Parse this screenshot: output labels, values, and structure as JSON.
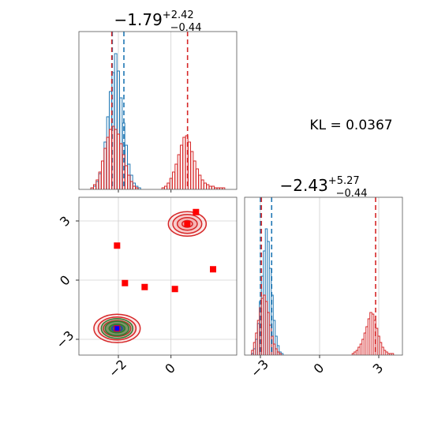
{
  "chart_data": [
    {
      "type": "histogram",
      "panel": "top-left",
      "title": {
        "value": "−1.79",
        "plus": "+2.42",
        "minus": "−0.44"
      },
      "x_range": [
        -3.5,
        2.5
      ],
      "grid": true,
      "series": [
        {
          "name": "",
          "color": "#1f77b4",
          "bin_width": 0.09,
          "x": [
            -3.0,
            -2.9,
            -2.8,
            -2.7,
            -2.6,
            -2.5,
            -2.4,
            -2.3,
            -2.2,
            -2.1,
            -2.0,
            -1.9,
            -1.8,
            -1.7,
            -1.6,
            -1.5,
            -1.4,
            -1.3,
            -1.2
          ],
          "y": [
            0.01,
            0.02,
            0.05,
            0.1,
            0.18,
            0.3,
            0.46,
            0.62,
            0.74,
            0.86,
            0.75,
            0.58,
            0.42,
            0.28,
            0.16,
            0.09,
            0.04,
            0.02,
            0.01
          ]
        },
        {
          "name": "",
          "color": "#d62728",
          "bin_width": 0.09,
          "x": [
            -3.0,
            -2.9,
            -2.8,
            -2.7,
            -2.6,
            -2.5,
            -2.4,
            -2.3,
            -2.2,
            -2.1,
            -2.0,
            -1.9,
            -1.8,
            -1.7,
            -1.6,
            -1.5,
            -1.4,
            -1.3,
            -0.3,
            -0.2,
            -0.1,
            0.0,
            0.1,
            0.2,
            0.3,
            0.4,
            0.5,
            0.6,
            0.7,
            0.8,
            0.9,
            1.0,
            1.1,
            1.2,
            1.3,
            1.4,
            1.5,
            1.6,
            1.7,
            1.8,
            1.9,
            2.0
          ],
          "y": [
            0.01,
            0.03,
            0.06,
            0.11,
            0.18,
            0.26,
            0.33,
            0.38,
            0.4,
            0.38,
            0.35,
            0.29,
            0.22,
            0.15,
            0.09,
            0.05,
            0.02,
            0.01,
            0.01,
            0.02,
            0.04,
            0.07,
            0.11,
            0.16,
            0.22,
            0.28,
            0.33,
            0.34,
            0.3,
            0.24,
            0.18,
            0.13,
            0.09,
            0.06,
            0.04,
            0.03,
            0.02,
            0.02,
            0.01,
            0.01,
            0.01,
            0.01
          ]
        }
      ],
      "vlines": [
        {
          "x": -2.23,
          "color": "#1f77b4"
        },
        {
          "x": -1.79,
          "color": "#1f77b4"
        },
        {
          "x": -2.25,
          "color": "#d62728"
        },
        {
          "x": 0.63,
          "color": "#d62728"
        }
      ]
    },
    {
      "type": "histogram",
      "panel": "bottom-right",
      "title": {
        "value": "−2.43",
        "plus": "+5.27",
        "minus": "−0.44"
      },
      "x_range": [
        -3.8,
        4.2
      ],
      "xticks": [
        -3,
        0,
        3
      ],
      "xtick_labels": [
        "−3",
        "0",
        "3"
      ],
      "grid": true,
      "series": [
        {
          "name": "",
          "color": "#1f77b4",
          "bin_width": 0.1,
          "x": [
            -3.4,
            -3.3,
            -3.2,
            -3.1,
            -3.0,
            -2.9,
            -2.8,
            -2.7,
            -2.6,
            -2.5,
            -2.4,
            -2.3,
            -2.2,
            -2.1,
            -2.0,
            -1.9
          ],
          "y": [
            0.01,
            0.04,
            0.1,
            0.2,
            0.34,
            0.5,
            0.66,
            0.8,
            0.72,
            0.55,
            0.38,
            0.22,
            0.12,
            0.06,
            0.02,
            0.01
          ]
        },
        {
          "name": "",
          "color": "#d62728",
          "bin_width": 0.1,
          "x": [
            -3.4,
            -3.3,
            -3.2,
            -3.1,
            -3.0,
            -2.9,
            -2.8,
            -2.7,
            -2.6,
            -2.5,
            -2.4,
            -2.3,
            -2.2,
            -2.1,
            -2.0,
            1.7,
            1.8,
            1.9,
            2.0,
            2.1,
            2.2,
            2.3,
            2.4,
            2.5,
            2.6,
            2.7,
            2.8,
            2.9,
            3.0,
            3.1,
            3.2,
            3.3,
            3.4,
            3.5,
            3.6,
            3.7
          ],
          "y": [
            0.03,
            0.08,
            0.14,
            0.22,
            0.3,
            0.36,
            0.38,
            0.34,
            0.27,
            0.19,
            0.12,
            0.07,
            0.04,
            0.02,
            0.01,
            0.01,
            0.02,
            0.03,
            0.05,
            0.07,
            0.1,
            0.14,
            0.18,
            0.23,
            0.27,
            0.26,
            0.22,
            0.17,
            0.12,
            0.08,
            0.05,
            0.03,
            0.02,
            0.01,
            0.01,
            0.01
          ]
        }
      ],
      "vlines": [
        {
          "x": -3.0,
          "color": "#1f77b4"
        },
        {
          "x": -2.43,
          "color": "#1f77b4"
        },
        {
          "x": -2.95,
          "color": "#d62728"
        },
        {
          "x": 2.84,
          "color": "#d62728"
        }
      ]
    },
    {
      "type": "contour-scatter",
      "panel": "bottom-left",
      "x_range": [
        -3.5,
        2.5
      ],
      "y_range": [
        -3.8,
        4.2
      ],
      "xticks": [
        -2,
        0
      ],
      "xtick_labels": [
        "−2",
        "0"
      ],
      "yticks": [
        -3,
        0,
        3
      ],
      "ytick_labels": [
        "−3",
        "0",
        "3"
      ],
      "grid": true,
      "contours": [
        {
          "color": "#d62728",
          "fill": "#f4a6a6",
          "cx": 0.62,
          "cy": 2.85,
          "rx": [
            0.72,
            0.55,
            0.38,
            0.2
          ],
          "ry": [
            0.62,
            0.48,
            0.32,
            0.17
          ]
        },
        {
          "color": "#d62728",
          "fill": "#f4a6a6",
          "cx": -2.05,
          "cy": -2.45,
          "rx": [
            0.88,
            0.72,
            0.52,
            0.3
          ],
          "ry": [
            0.72,
            0.58,
            0.4,
            0.22
          ]
        },
        {
          "color": "#2e7d32",
          "fill": "#2e7d32",
          "cx": -2.05,
          "cy": -2.45,
          "rx": [
            0.6,
            0.45,
            0.3
          ],
          "ry": [
            0.5,
            0.36,
            0.22
          ]
        },
        {
          "color": "#1f3fb4",
          "fill": "#1f3fb4",
          "cx": -2.05,
          "cy": -2.45,
          "rx": [
            0.2
          ],
          "ry": [
            0.15
          ]
        }
      ],
      "markers": {
        "color": "#ff0000",
        "x": [
          -2.05,
          -1.75,
          -1.0,
          0.15,
          0.95,
          1.6,
          0.62,
          -2.05
        ],
        "y": [
          1.75,
          -0.15,
          -0.35,
          -0.45,
          3.45,
          0.55,
          2.85,
          -2.45
        ]
      },
      "blue_marker": {
        "x": -2.05,
        "y": -2.45,
        "color": "#0000ff"
      }
    }
  ],
  "annotation": {
    "text": "KL = 0.0367"
  }
}
